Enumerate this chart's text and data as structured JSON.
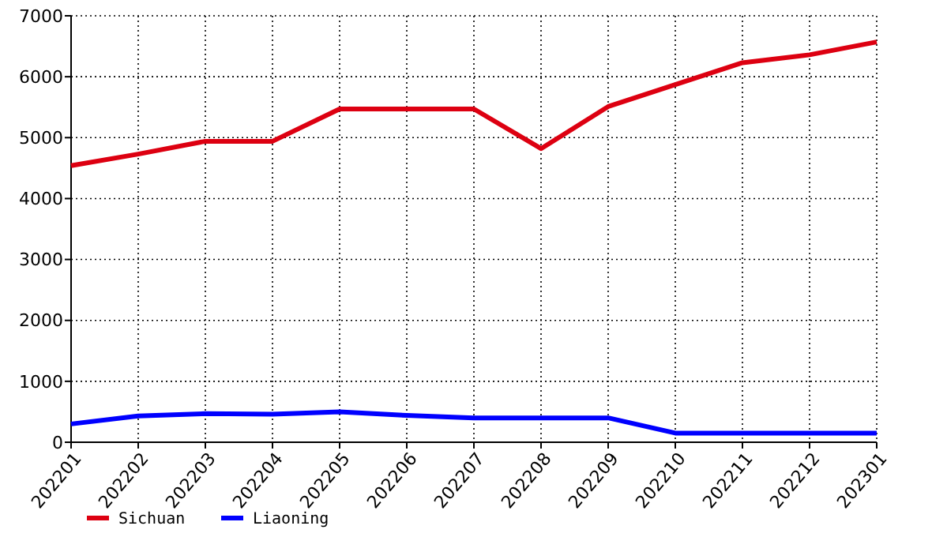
{
  "chart_data": {
    "type": "line",
    "categories": [
      "202201",
      "202202",
      "202203",
      "202204",
      "202205",
      "202206",
      "202207",
      "202208",
      "202209",
      "202210",
      "202211",
      "202212",
      "202301"
    ],
    "series": [
      {
        "name": "Sichuan",
        "color": "#dd0011",
        "values": [
          4540,
          4730,
          4940,
          4940,
          5470,
          5470,
          5470,
          4820,
          5510,
          5870,
          6230,
          6360,
          6570
        ]
      },
      {
        "name": "Liaoning",
        "color": "#0000ff",
        "values": [
          300,
          430,
          470,
          460,
          500,
          440,
          400,
          400,
          400,
          150,
          150,
          150,
          150
        ]
      }
    ],
    "ylim": [
      0,
      7000
    ],
    "yticks": [
      0,
      1000,
      2000,
      3000,
      4000,
      5000,
      6000,
      7000
    ],
    "grid": true,
    "legend": "bottom left",
    "marker": "none",
    "line_style": "solid"
  }
}
